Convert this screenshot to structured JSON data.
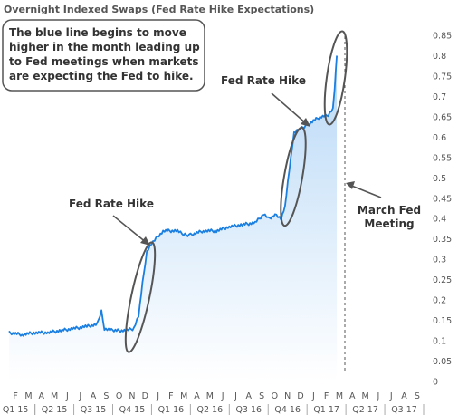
{
  "chart_data": {
    "type": "area",
    "title": "Overnight Indexed Swaps (Fed Rate Hike Expectations)",
    "xlabel": "",
    "ylabel": "",
    "ylim": [
      0,
      0.87
    ],
    "yticks": [
      0,
      0.05,
      0.1,
      0.15,
      0.2,
      0.25,
      0.3,
      0.35,
      0.4,
      0.45,
      0.5,
      0.55,
      0.6,
      0.65,
      0.7,
      0.75,
      0.8,
      0.85
    ],
    "ytick_labels": [
      "0",
      "0.05",
      "0.1",
      "0.15",
      "0.2",
      "0.25",
      "0.3",
      "0.35",
      "0.4",
      "0.45",
      "0.5",
      "0.55",
      "0.6",
      "0.65",
      "0.7",
      "0.75",
      "0.8",
      "0.85"
    ],
    "grid": false,
    "y_axis_side": "right",
    "colors": {
      "line": "#1a7fe0",
      "fill_top": "#b9d9f7",
      "fill_bottom": "#ffffff",
      "annotation": "#555555",
      "text": "#333333"
    },
    "x_start": "2015-02",
    "x_end": "2017-09",
    "month_labels": [
      "F",
      "M",
      "A",
      "M",
      "J",
      "J",
      "A",
      "S",
      "O",
      "N",
      "D",
      "J",
      "F",
      "M",
      "A",
      "M",
      "J",
      "J",
      "A",
      "S",
      "O",
      "N",
      "D",
      "J",
      "F",
      "M",
      "A",
      "M",
      "J",
      "J",
      "A",
      "S"
    ],
    "quarter_labels": [
      "Q1 15",
      "Q2 15",
      "Q3 15",
      "Q4 15",
      "Q1 16",
      "Q2 16",
      "Q3 16",
      "Q4 16",
      "Q1 17",
      "Q2 17",
      "Q3 17"
    ],
    "series": [
      {
        "x": [
          "2015-02-01",
          "2015-03-01",
          "2015-04-01",
          "2015-05-01",
          "2015-06-01",
          "2015-07-01",
          "2015-08-01",
          "2015-08-25",
          "2015-09-05",
          "2015-09-12",
          "2015-10-01",
          "2015-11-01",
          "2015-11-20",
          "2015-12-01",
          "2015-12-10",
          "2015-12-20",
          "2016-01-01",
          "2016-01-15",
          "2016-02-01",
          "2016-03-01",
          "2016-03-15",
          "2016-04-01",
          "2016-05-01",
          "2016-06-01",
          "2016-07-01",
          "2016-08-01",
          "2016-09-01",
          "2016-09-20",
          "2016-10-01",
          "2016-10-20",
          "2016-11-01",
          "2016-11-10",
          "2016-11-20",
          "2016-12-01",
          "2016-12-15",
          "2017-01-01",
          "2017-02-01",
          "2017-02-20",
          "2017-03-01",
          "2017-03-05",
          "2017-03-10"
        ],
        "y": [
          0.12,
          0.115,
          0.12,
          0.12,
          0.125,
          0.13,
          0.135,
          0.14,
          0.175,
          0.13,
          0.125,
          0.125,
          0.13,
          0.16,
          0.24,
          0.32,
          0.34,
          0.355,
          0.37,
          0.37,
          0.36,
          0.36,
          0.37,
          0.37,
          0.38,
          0.385,
          0.39,
          0.41,
          0.4,
          0.41,
          0.4,
          0.43,
          0.52,
          0.61,
          0.62,
          0.63,
          0.65,
          0.655,
          0.67,
          0.72,
          0.8
        ]
      }
    ],
    "annotations": [
      {
        "text": "Fed Rate Hike",
        "x": "2015-12"
      },
      {
        "text": "Fed Rate Hike",
        "x": "2016-12"
      },
      {
        "text": "March Fed",
        "text2": "Meeting",
        "x": "2017-03"
      }
    ],
    "note_lines": [
      "The blue line begins to move",
      "higher in the month leading up",
      "to Fed meetings when markets",
      "are expecting the Fed to hike."
    ]
  }
}
